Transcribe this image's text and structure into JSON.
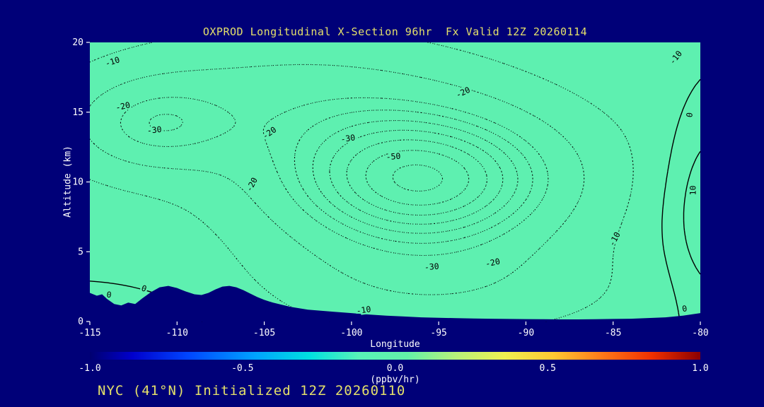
{
  "title": "OXPROD Longitudinal X-Section 96hr  Fx Valid 12Z 20260114",
  "footer": "NYC (41°N) Initialized 12Z 20260110",
  "chart_data": {
    "type": "contour",
    "title": "OXPROD Longitudinal X-Section 96hr  Fx Valid 12Z 20260114",
    "subtitle": "NYC (41°N) Initialized 12Z 20260110",
    "xlabel": "Longitude",
    "ylabel": "Altitude (km)",
    "units": "(ppbv/hr)",
    "xlim": [
      -115,
      -80
    ],
    "ylim": [
      0,
      20
    ],
    "x_ticks": [
      -115,
      -110,
      -105,
      -100,
      -95,
      -90,
      -85,
      -80
    ],
    "y_ticks": [
      0,
      5,
      10,
      15,
      20
    ],
    "grid": false,
    "contour_levels": [
      -60,
      -55,
      -50,
      -45,
      -40,
      -35,
      -30,
      -20,
      -10,
      0,
      10
    ],
    "negative_line_style": "dotted",
    "nonnegative_line_style": "solid",
    "field_blobs": [
      {
        "lon": -96,
        "alt": 10,
        "sx": 8,
        "sy": 5,
        "amp": -52
      },
      {
        "lon": -111.5,
        "alt": 14,
        "sx": 4.5,
        "sy": 3.2,
        "amp": -20
      },
      {
        "lon": -104,
        "alt": 16.5,
        "sx": 11,
        "sy": 5,
        "amp": -16
      },
      {
        "lon": -100,
        "alt": 12,
        "sx": 30,
        "sy": 9,
        "amp": -8
      },
      {
        "lon": -95,
        "alt": 2,
        "sx": 12,
        "sy": 4,
        "amp": -14
      },
      {
        "lon": -114,
        "alt": 0,
        "sx": 7,
        "sy": 3,
        "amp": 8
      },
      {
        "lon": -79,
        "alt": 8,
        "sx": 2.8,
        "sy": 7,
        "amp": 26
      }
    ],
    "terrain_profile": [
      [
        -115,
        2.05
      ],
      [
        -114.6,
        1.85
      ],
      [
        -114.3,
        1.95
      ],
      [
        -114,
        1.6
      ],
      [
        -113.6,
        1.25
      ],
      [
        -113.2,
        1.15
      ],
      [
        -112.8,
        1.35
      ],
      [
        -112.4,
        1.25
      ],
      [
        -112,
        1.65
      ],
      [
        -111.5,
        2.1
      ],
      [
        -111,
        2.45
      ],
      [
        -110.5,
        2.55
      ],
      [
        -110,
        2.4
      ],
      [
        -109.5,
        2.15
      ],
      [
        -109,
        1.95
      ],
      [
        -108.6,
        1.9
      ],
      [
        -108.2,
        2.05
      ],
      [
        -107.8,
        2.3
      ],
      [
        -107.4,
        2.5
      ],
      [
        -107,
        2.55
      ],
      [
        -106.6,
        2.45
      ],
      [
        -106.2,
        2.25
      ],
      [
        -105.8,
        2.0
      ],
      [
        -105.4,
        1.75
      ],
      [
        -105,
        1.55
      ],
      [
        -104.5,
        1.35
      ],
      [
        -104,
        1.2
      ],
      [
        -103.5,
        1.05
      ],
      [
        -103,
        0.95
      ],
      [
        -102.5,
        0.85
      ],
      [
        -102,
        0.8
      ],
      [
        -101,
        0.7
      ],
      [
        -100,
        0.6
      ],
      [
        -99,
        0.5
      ],
      [
        -98,
        0.42
      ],
      [
        -97,
        0.36
      ],
      [
        -96,
        0.3
      ],
      [
        -95,
        0.27
      ],
      [
        -94,
        0.24
      ],
      [
        -93,
        0.22
      ],
      [
        -92,
        0.2
      ],
      [
        -91,
        0.18
      ],
      [
        -90,
        0.17
      ],
      [
        -89,
        0.16
      ],
      [
        -88,
        0.15
      ],
      [
        -87,
        0.15
      ],
      [
        -86,
        0.16
      ],
      [
        -85,
        0.18
      ],
      [
        -84,
        0.2
      ],
      [
        -83,
        0.25
      ],
      [
        -82,
        0.3
      ],
      [
        -81,
        0.42
      ],
      [
        -80,
        0.6
      ]
    ],
    "contour_labels": [
      {
        "lon": -113.7,
        "alt": 18.6,
        "text": "-10",
        "rot": -18
      },
      {
        "lon": -113.1,
        "alt": 15.4,
        "text": "-20",
        "rot": -12
      },
      {
        "lon": -111.3,
        "alt": 13.7,
        "text": "-30",
        "rot": -6
      },
      {
        "lon": -104.7,
        "alt": 13.5,
        "text": "-20",
        "rot": -35
      },
      {
        "lon": -105.7,
        "alt": 9.8,
        "text": "-20",
        "rot": -62
      },
      {
        "lon": -100.2,
        "alt": 13.1,
        "text": "-30",
        "rot": -8
      },
      {
        "lon": -97.6,
        "alt": 11.8,
        "text": "-50",
        "rot": -5
      },
      {
        "lon": -93.6,
        "alt": 16.4,
        "text": "-20",
        "rot": -25
      },
      {
        "lon": -81.4,
        "alt": 18.9,
        "text": "-10",
        "rot": -52
      },
      {
        "lon": -80.4,
        "alt": 9.4,
        "text": "10",
        "rot": -90
      },
      {
        "lon": -84.9,
        "alt": 5.9,
        "text": "-10",
        "rot": -62
      },
      {
        "lon": -91.9,
        "alt": 4.2,
        "text": "-20",
        "rot": -12
      },
      {
        "lon": -95.4,
        "alt": 3.9,
        "text": "-30",
        "rot": -5
      },
      {
        "lon": -99.3,
        "alt": 0.8,
        "text": "-10",
        "rot": -8
      },
      {
        "lon": -111.9,
        "alt": 2.35,
        "text": "0",
        "rot": 20
      },
      {
        "lon": -113.9,
        "alt": 1.9,
        "text": "0",
        "rot": 6
      },
      {
        "lon": -80.9,
        "alt": 0.9,
        "text": "0",
        "rot": -10
      },
      {
        "lon": -80.6,
        "alt": 14.8,
        "text": "0",
        "rot": -82
      }
    ],
    "colorbar": {
      "ticks": [
        "-1.0",
        "-0.5",
        "0.0",
        "0.5",
        "1.0"
      ],
      "label": "(ppbv/hr)",
      "stops": [
        {
          "p": 0,
          "c": "#000070"
        },
        {
          "p": 7,
          "c": "#0000cd"
        },
        {
          "p": 16,
          "c": "#0045ff"
        },
        {
          "p": 27,
          "c": "#00a2ff"
        },
        {
          "p": 36,
          "c": "#00e0e0"
        },
        {
          "p": 44,
          "c": "#57f2b8"
        },
        {
          "p": 52,
          "c": "#63f0a8"
        },
        {
          "p": 60,
          "c": "#b8f07a"
        },
        {
          "p": 68,
          "c": "#f0f050"
        },
        {
          "p": 76,
          "c": "#ffc832"
        },
        {
          "p": 84,
          "c": "#ff7818"
        },
        {
          "p": 92,
          "c": "#f03000"
        },
        {
          "p": 100,
          "c": "#8c0000"
        }
      ]
    },
    "colors": {
      "background": "#000078",
      "plot_bg": "#5ef0b0",
      "terrain": "#000078",
      "contour": "#000000",
      "axis_text": "#ffffff",
      "title_text": "#e4e06a"
    }
  }
}
